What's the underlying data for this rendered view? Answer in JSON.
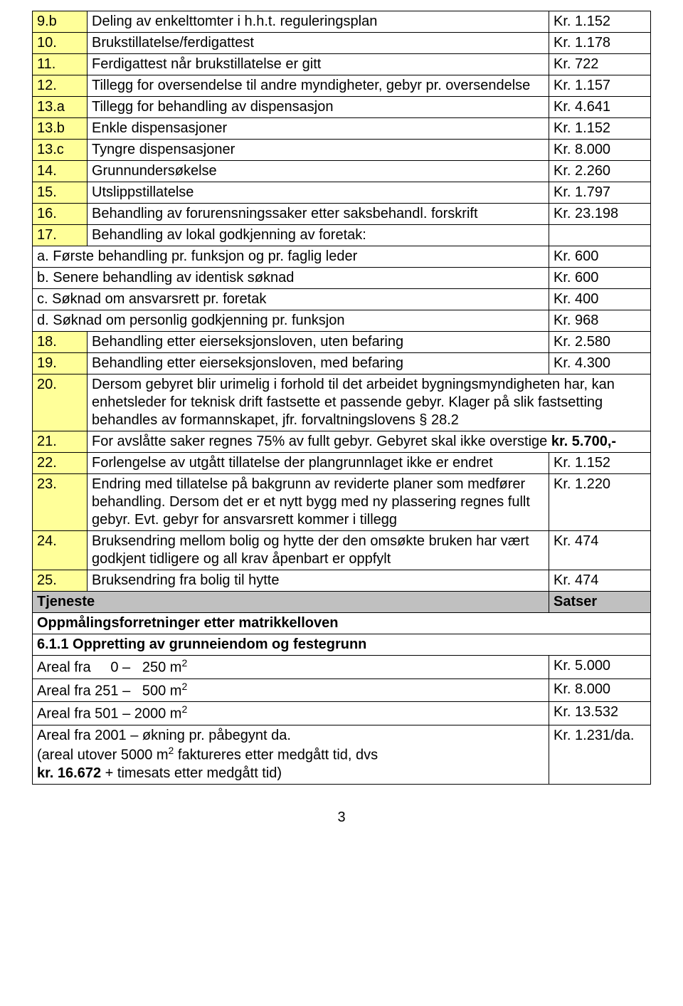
{
  "colors": {
    "highlight": "#ffff99",
    "header_row": "#c0c0c0",
    "border": "#000000",
    "background": "#ffffff",
    "text": "#000000"
  },
  "typography": {
    "font_family": "Arial",
    "font_size_pt": 15
  },
  "rows": {
    "r9b_num": "9.b",
    "r9b_desc": "Deling av enkelttomter i h.h.t. reguleringsplan",
    "r9b_val": "Kr.  1.152",
    "r10_num": "10.",
    "r10_desc": "Brukstillatelse/ferdigattest",
    "r10_val": "Kr.  1.178",
    "r11_num": "11.",
    "r11_desc": "Ferdigattest når brukstillatelse er gitt",
    "r11_val": "Kr.     722",
    "r12_num": "12.",
    "r12_desc": "Tillegg for oversendelse til andre myndigheter, gebyr pr. oversendelse",
    "r12_val": "Kr.  1.157",
    "r13a_num": "13.a",
    "r13a_desc": "Tillegg for behandling av dispensasjon",
    "r13a_val": "Kr.  4.641",
    "r13b_num": "13.b",
    "r13b_desc": "Enkle dispensasjoner",
    "r13b_val": "Kr.  1.152",
    "r13c_num": "13.c",
    "r13c_desc": "Tyngre dispensasjoner",
    "r13c_val": "Kr.  8.000",
    "r14_num": "14.",
    "r14_desc": "Grunnundersøkelse",
    "r14_val": "Kr.  2.260",
    "r15_num": "15.",
    "r15_desc": "Utslippstillatelse",
    "r15_val": "Kr.  1.797",
    "r16_num": "16.",
    "r16_desc": "Behandling av forurensningssaker etter saksbehandl. forskrift",
    "r16_val": "Kr. 23.198",
    "r17_num": "17.",
    "r17_desc": "Behandling av lokal godkjenning av foretak:",
    "sub_a_desc": "a. Første behandling pr. funksjon og pr. faglig leder",
    "sub_a_val": "Kr.     600",
    "sub_b_desc": "b. Senere behandling av identisk søknad",
    "sub_b_val": "Kr.     600",
    "sub_c_desc": "c. Søknad om ansvarsrett pr. foretak",
    "sub_c_val": "Kr.     400",
    "sub_d_desc": "d. Søknad om personlig godkjenning  pr. funksjon",
    "sub_d_val": "Kr.     968",
    "r18_num": "18.",
    "r18_desc": "Behandling etter eierseksjonsloven, uten  befaring",
    "r18_val": "Kr.  2.580",
    "r19_num": "19.",
    "r19_desc": "Behandling etter eierseksjonsloven, med befaring",
    "r19_val": "Kr.  4.300",
    "r20_num": "20.",
    "r20_desc": "Dersom gebyret blir urimelig i forhold til det arbeidet bygningsmyndigheten har, kan enhetsleder for teknisk drift fastsette et passende gebyr. Klager på slik fastsetting behandles av formannskapet, jfr. forvaltningslovens § 28.2",
    "r21_num": "21.",
    "r22_num": "22.",
    "r22_desc": "Forlengelse av utgått tillatelse der plangrunnlaget ikke er endret",
    "r22_val": "Kr.  1.152",
    "r23_num": "23.",
    "r23_desc": "Endring med tillatelse på bakgrunn av reviderte planer som medfører behandling. Dersom det er et nytt bygg med ny plassering regnes fullt gebyr. Evt. gebyr for ansvarsrett kommer i tillegg",
    "r23_val": "Kr.  1.220",
    "r24_num": "24.",
    "r24_desc": "Bruksendring mellom bolig og hytte der den omsøkte bruken har vært godkjent tidligere og all krav åpenbart er oppfylt",
    "r24_val": "Kr.     474",
    "r25_num": "25.",
    "r25_desc": "Bruksendring fra bolig til hytte",
    "r25_val": "Kr.     474",
    "hdr_tjeneste": "Tjeneste",
    "hdr_satser": "Satser",
    "section_title": "Oppmålingsforretninger etter matrikkelloven",
    "section_611": "6.1.1 Oppretting av grunneiendom og festegrunn",
    "areal1_val": "Kr.   5.000",
    "areal2_val": "Kr.   8.000",
    "areal3_val": "Kr.  13.532",
    "areal4_desc_line1": "Areal fra 2001 – økning pr. påbegynt da.",
    "areal4_val": "Kr.   1.231/da."
  },
  "page_number": "3"
}
